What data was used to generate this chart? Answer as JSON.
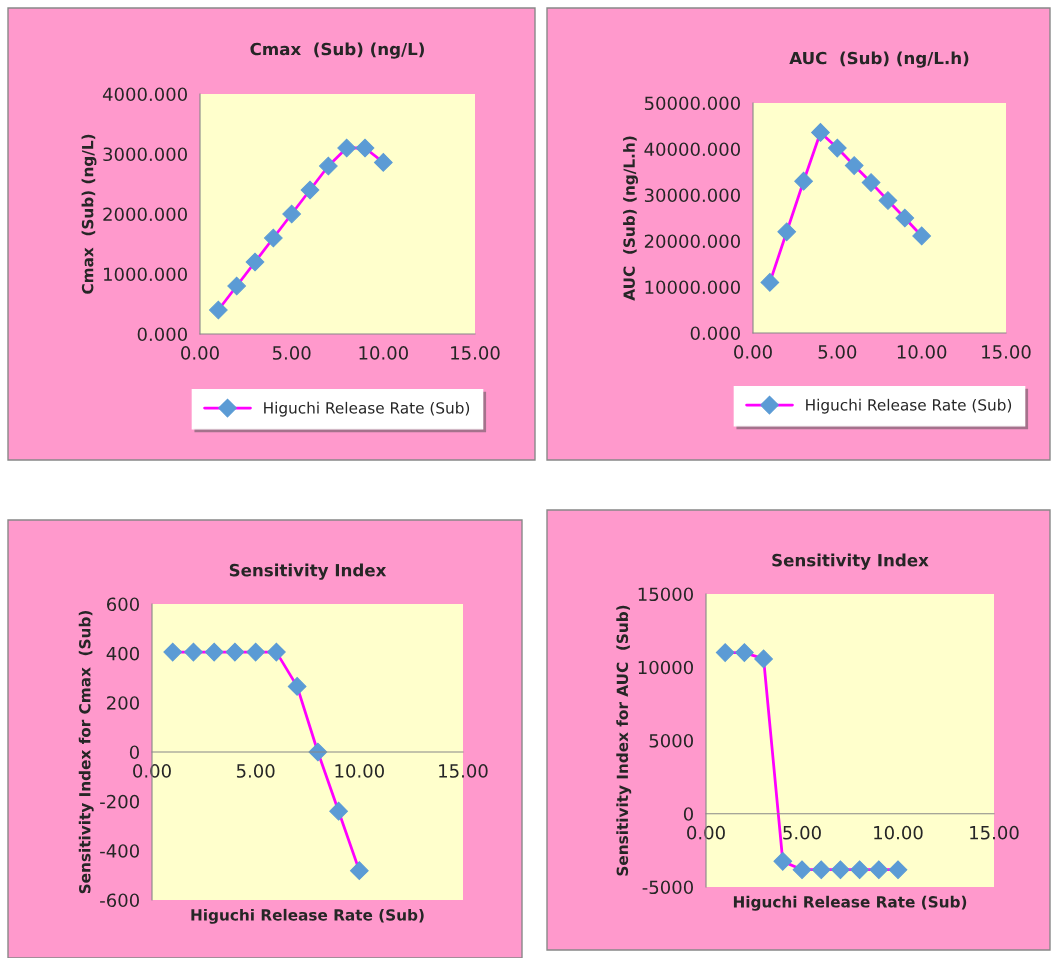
{
  "chart_data": [
    {
      "type": "line",
      "title": "Cmax  (Sub) (ng/L)",
      "ylabel": "Cmax  (Sub) (ng/L)",
      "x": [
        1,
        2,
        3,
        4,
        5,
        6,
        7,
        8,
        9,
        10
      ],
      "series": [
        {
          "name": "Higuchi Release Rate (Sub)",
          "color": "#ff00ff",
          "values": [
            400,
            800,
            1200,
            1600,
            2000,
            2400,
            2800,
            3100,
            3100,
            2860
          ]
        }
      ],
      "xlim": [
        0,
        15
      ],
      "xticks": [
        {
          "value": 0,
          "label": "0.00"
        },
        {
          "value": 5,
          "label": "5.00"
        },
        {
          "value": 10,
          "label": "10.00"
        },
        {
          "value": 15,
          "label": "15.00"
        }
      ],
      "ylim": [
        0,
        4000
      ],
      "yticks": [
        {
          "value": 0,
          "label": "0.000"
        },
        {
          "value": 1000,
          "label": "1000.000"
        },
        {
          "value": 2000,
          "label": "2000.000"
        },
        {
          "value": 3000,
          "label": "3000.000"
        },
        {
          "value": 4000,
          "label": "4000.000"
        }
      ],
      "marker": "diamond",
      "line_style": "solid",
      "legend": "bottom",
      "grid": false
    },
    {
      "type": "line",
      "title": "AUC  (Sub) (ng/L.h)",
      "ylabel": "AUC  (Sub) (ng/L.h)",
      "x": [
        1,
        2,
        3,
        4,
        5,
        6,
        7,
        8,
        9,
        10
      ],
      "series": [
        {
          "name": "Higuchi Release Rate (Sub)",
          "color": "#ff00ff",
          "values": [
            11000,
            22000,
            33000,
            43600,
            40200,
            36400,
            32700,
            28800,
            25000,
            21100
          ]
        }
      ],
      "xlim": [
        0,
        15
      ],
      "xticks": [
        {
          "value": 0,
          "label": "0.00"
        },
        {
          "value": 5,
          "label": "5.00"
        },
        {
          "value": 10,
          "label": "10.00"
        },
        {
          "value": 15,
          "label": "15.00"
        }
      ],
      "ylim": [
        0,
        50000
      ],
      "yticks": [
        {
          "value": 0,
          "label": "0.000"
        },
        {
          "value": 10000,
          "label": "10000.000"
        },
        {
          "value": 20000,
          "label": "20000.000"
        },
        {
          "value": 30000,
          "label": "30000.000"
        },
        {
          "value": 40000,
          "label": "40000.000"
        },
        {
          "value": 50000,
          "label": "50000.000"
        }
      ],
      "marker": "diamond",
      "line_style": "solid",
      "legend": "bottom",
      "grid": false
    },
    {
      "type": "line",
      "title": "Sensitivity Index",
      "xlabel": "Higuchi Release Rate (Sub)",
      "ylabel": "Sensitivity Index for Cmax  (Sub)",
      "x": [
        1,
        2,
        3,
        4,
        5,
        6,
        7,
        8,
        9,
        10
      ],
      "series": [
        {
          "color": "#ff00ff",
          "values": [
            405,
            405,
            405,
            405,
            405,
            405,
            266,
            0,
            -240,
            -481
          ]
        }
      ],
      "xlim": [
        0,
        15
      ],
      "xticks": [
        {
          "value": 0,
          "label": "0.00"
        },
        {
          "value": 5,
          "label": "5.00"
        },
        {
          "value": 10,
          "label": "10.00"
        },
        {
          "value": 15,
          "label": "15.00"
        }
      ],
      "ylim": [
        -600,
        600
      ],
      "yticks": [
        -600,
        -400,
        -200,
        0,
        200,
        400,
        600
      ],
      "marker": "diamond",
      "line_style": "solid",
      "grid": false
    },
    {
      "type": "line",
      "title": "Sensitivity Index",
      "xlabel": "Higuchi Release Rate (Sub)",
      "ylabel": "Sensitivity Index for AUC  (Sub)",
      "x": [
        1,
        2,
        3,
        4,
        5,
        6,
        7,
        8,
        9,
        10
      ],
      "series": [
        {
          "color": "#ff00ff",
          "values": [
            11000,
            11000,
            10570,
            -3250,
            -3820,
            -3820,
            -3820,
            -3820,
            -3820,
            -3820
          ]
        }
      ],
      "xlim": [
        0,
        15
      ],
      "xticks": [
        {
          "value": 0,
          "label": "0.00"
        },
        {
          "value": 5,
          "label": "5.00"
        },
        {
          "value": 10,
          "label": "10.00"
        },
        {
          "value": 15,
          "label": "15.00"
        }
      ],
      "ylim": [
        -5000,
        15000
      ],
      "yticks": [
        -5000,
        0,
        5000,
        10000,
        15000
      ],
      "marker": "diamond",
      "line_style": "solid",
      "grid": false
    }
  ]
}
